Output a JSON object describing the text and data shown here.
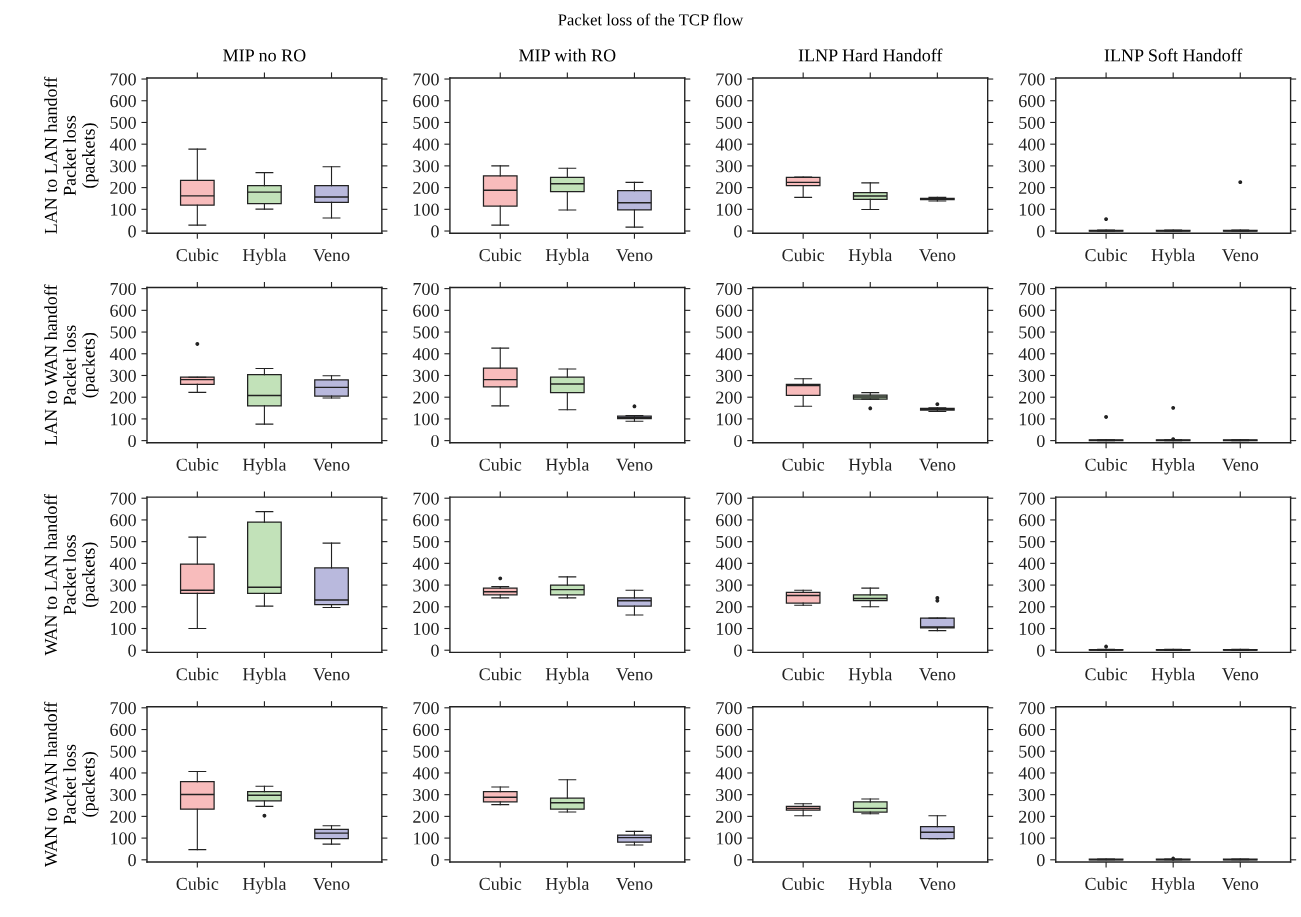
{
  "chart_data": [
    {
      "type": "box",
      "title": "MIP no RO",
      "ylabel": "LAN to LAN handoff\nPacket loss\n(packets)",
      "annotations": [
        "Packet loss of the TCP flow"
      ],
      "categories": [
        "Cubic",
        "Hybla",
        "Veno"
      ],
      "colors": [
        "#f8bcbc",
        "#c2e2b9",
        "#b9b9dd"
      ],
      "ylim": [
        -10,
        705
      ],
      "yticks": [
        0,
        100,
        200,
        300,
        400,
        500,
        600,
        700
      ],
      "grid": false,
      "boxes": [
        {
          "low": 27,
          "q1": 119,
          "median": 162,
          "q3": 233,
          "high": 377
        },
        {
          "low": 101,
          "q1": 126,
          "median": 179,
          "q3": 209,
          "high": 269
        },
        {
          "low": 60,
          "q1": 132,
          "median": 157,
          "q3": 209,
          "high": 296
        }
      ]
    },
    {
      "type": "box",
      "title": "MIP with RO",
      "categories": [
        "Cubic",
        "Hybla",
        "Veno"
      ],
      "colors": [
        "#f8bcbc",
        "#c2e2b9",
        "#b9b9dd"
      ],
      "ylim": [
        -10,
        705
      ],
      "yticks": [
        0,
        100,
        200,
        300,
        400,
        500,
        600,
        700
      ],
      "grid": false,
      "boxes": [
        {
          "low": 27,
          "q1": 115,
          "median": 188,
          "q3": 254,
          "high": 300
        },
        {
          "low": 97,
          "q1": 182,
          "median": 218,
          "q3": 247,
          "high": 289
        },
        {
          "low": 18,
          "q1": 97,
          "median": 130,
          "q3": 186,
          "high": 224
        }
      ]
    },
    {
      "type": "box",
      "title": "ILNP Hard Handoff",
      "categories": [
        "Cubic",
        "Hybla",
        "Veno"
      ],
      "colors": [
        "#f8bcbc",
        "#c2e2b9",
        "#b9b9dd"
      ],
      "ylim": [
        -10,
        705
      ],
      "yticks": [
        0,
        100,
        200,
        300,
        400,
        500,
        600,
        700
      ],
      "grid": false,
      "boxes": [
        {
          "low": 155,
          "q1": 209,
          "median": 224,
          "q3": 247,
          "high": 249
        },
        {
          "low": 99,
          "q1": 146,
          "median": 161,
          "q3": 177,
          "high": 222
        },
        {
          "low": 138,
          "q1": 145,
          "median": 148,
          "q3": 150,
          "high": 155
        }
      ]
    },
    {
      "type": "box",
      "title": "ILNP Soft Handoff",
      "categories": [
        "Cubic",
        "Hybla",
        "Veno"
      ],
      "colors": [
        "#f8bcbc",
        "#c2e2b9",
        "#b9b9dd"
      ],
      "ylim": [
        -10,
        705
      ],
      "yticks": [
        0,
        100,
        200,
        300,
        400,
        500,
        600,
        700
      ],
      "grid": false,
      "boxes": [
        {
          "low": 0,
          "q1": 0,
          "median": 1,
          "q3": 3,
          "high": 4,
          "outliers": [
            55
          ]
        },
        {
          "low": 0,
          "q1": 0,
          "median": 1,
          "q3": 3,
          "high": 4
        },
        {
          "low": 0,
          "q1": 0,
          "median": 1,
          "q3": 3,
          "high": 4,
          "outliers": [
            225
          ]
        }
      ]
    },
    {
      "type": "box",
      "ylabel": "LAN to WAN handoff\nPacket loss\n(packets)",
      "categories": [
        "Cubic",
        "Hybla",
        "Veno"
      ],
      "colors": [
        "#f8bcbc",
        "#c2e2b9",
        "#b9b9dd"
      ],
      "ylim": [
        -10,
        705
      ],
      "yticks": [
        0,
        100,
        200,
        300,
        400,
        500,
        600,
        700
      ],
      "grid": false,
      "boxes": [
        {
          "low": 222,
          "q1": 259,
          "median": 281,
          "q3": 292,
          "high": 292,
          "outliers": [
            445
          ]
        },
        {
          "low": 76,
          "q1": 160,
          "median": 208,
          "q3": 304,
          "high": 332
        },
        {
          "low": 196,
          "q1": 205,
          "median": 245,
          "q3": 280,
          "high": 299
        }
      ]
    },
    {
      "type": "box",
      "categories": [
        "Cubic",
        "Hybla",
        "Veno"
      ],
      "colors": [
        "#f8bcbc",
        "#c2e2b9",
        "#b9b9dd"
      ],
      "ylim": [
        -10,
        705
      ],
      "yticks": [
        0,
        100,
        200,
        300,
        400,
        500,
        600,
        700
      ],
      "grid": false,
      "boxes": [
        {
          "low": 160,
          "q1": 248,
          "median": 281,
          "q3": 334,
          "high": 426
        },
        {
          "low": 142,
          "q1": 221,
          "median": 261,
          "q3": 292,
          "high": 330
        },
        {
          "low": 89,
          "q1": 101,
          "median": 106,
          "q3": 113,
          "high": 115,
          "outliers": [
            158
          ]
        }
      ]
    },
    {
      "type": "box",
      "categories": [
        "Cubic",
        "Hybla",
        "Veno"
      ],
      "colors": [
        "#f8bcbc",
        "#c2e2b9",
        "#b9b9dd"
      ],
      "ylim": [
        -10,
        705
      ],
      "yticks": [
        0,
        100,
        200,
        300,
        400,
        500,
        600,
        700
      ],
      "grid": false,
      "boxes": [
        {
          "low": 158,
          "q1": 208,
          "median": 254,
          "q3": 259,
          "high": 285
        },
        {
          "low": 191,
          "q1": 191,
          "median": 201,
          "q3": 210,
          "high": 221,
          "outliers": [
            149
          ]
        },
        {
          "low": 134,
          "q1": 141,
          "median": 144,
          "q3": 149,
          "high": 151,
          "outliers": [
            168
          ]
        }
      ]
    },
    {
      "type": "box",
      "categories": [
        "Cubic",
        "Hybla",
        "Veno"
      ],
      "colors": [
        "#f8bcbc",
        "#c2e2b9",
        "#b9b9dd"
      ],
      "ylim": [
        -10,
        705
      ],
      "yticks": [
        0,
        100,
        200,
        300,
        400,
        500,
        600,
        700
      ],
      "grid": false,
      "boxes": [
        {
          "low": 0,
          "q1": 0,
          "median": 1,
          "q3": 3,
          "high": 4,
          "outliers": [
            109
          ]
        },
        {
          "low": 0,
          "q1": 0,
          "median": 1,
          "q3": 3,
          "high": 4,
          "outliers": [
            151,
            7
          ]
        },
        {
          "low": 0,
          "q1": 0,
          "median": 1,
          "q3": 3,
          "high": 4
        }
      ]
    },
    {
      "type": "box",
      "ylabel": "WAN to LAN handoff\nPacket loss\n(packets)",
      "categories": [
        "Cubic",
        "Hybla",
        "Veno"
      ],
      "colors": [
        "#f8bcbc",
        "#c2e2b9",
        "#b9b9dd"
      ],
      "ylim": [
        -10,
        705
      ],
      "yticks": [
        0,
        100,
        200,
        300,
        400,
        500,
        600,
        700
      ],
      "grid": false,
      "boxes": [
        {
          "low": 100,
          "q1": 262,
          "median": 276,
          "q3": 397,
          "high": 521
        },
        {
          "low": 203,
          "q1": 262,
          "median": 290,
          "q3": 590,
          "high": 638
        },
        {
          "low": 197,
          "q1": 210,
          "median": 231,
          "q3": 379,
          "high": 493
        }
      ]
    },
    {
      "type": "box",
      "categories": [
        "Cubic",
        "Hybla",
        "Veno"
      ],
      "colors": [
        "#f8bcbc",
        "#c2e2b9",
        "#b9b9dd"
      ],
      "ylim": [
        -10,
        705
      ],
      "yticks": [
        0,
        100,
        200,
        300,
        400,
        500,
        600,
        700
      ],
      "grid": false,
      "boxes": [
        {
          "low": 241,
          "q1": 255,
          "median": 269,
          "q3": 286,
          "high": 293,
          "outliers": [
            331
          ]
        },
        {
          "low": 241,
          "q1": 255,
          "median": 279,
          "q3": 300,
          "high": 338
        },
        {
          "low": 162,
          "q1": 203,
          "median": 228,
          "q3": 241,
          "high": 276
        }
      ]
    },
    {
      "type": "box",
      "categories": [
        "Cubic",
        "Hybla",
        "Veno"
      ],
      "colors": [
        "#f8bcbc",
        "#c2e2b9",
        "#b9b9dd"
      ],
      "ylim": [
        -10,
        705
      ],
      "yticks": [
        0,
        100,
        200,
        300,
        400,
        500,
        600,
        700
      ],
      "grid": false,
      "boxes": [
        {
          "low": 207,
          "q1": 217,
          "median": 252,
          "q3": 266,
          "high": 276
        },
        {
          "low": 200,
          "q1": 228,
          "median": 238,
          "q3": 255,
          "high": 286
        },
        {
          "low": 90,
          "q1": 103,
          "median": 107,
          "q3": 148,
          "high": 148,
          "outliers": [
            241,
            228
          ]
        }
      ]
    },
    {
      "type": "box",
      "categories": [
        "Cubic",
        "Hybla",
        "Veno"
      ],
      "colors": [
        "#f8bcbc",
        "#c2e2b9",
        "#b9b9dd"
      ],
      "ylim": [
        -10,
        705
      ],
      "yticks": [
        0,
        100,
        200,
        300,
        400,
        500,
        600,
        700
      ],
      "grid": false,
      "boxes": [
        {
          "low": 0,
          "q1": 0,
          "median": 1,
          "q3": 3,
          "high": 4,
          "outliers": [
            17
          ]
        },
        {
          "low": 0,
          "q1": 0,
          "median": 1,
          "q3": 3,
          "high": 4
        },
        {
          "low": 0,
          "q1": 0,
          "median": 1,
          "q3": 3,
          "high": 4
        }
      ]
    },
    {
      "type": "box",
      "ylabel": "WAN to WAN handoff\nPacket loss\n(packets)",
      "categories": [
        "Cubic",
        "Hybla",
        "Veno"
      ],
      "colors": [
        "#f8bcbc",
        "#c2e2b9",
        "#b9b9dd"
      ],
      "ylim": [
        -10,
        705
      ],
      "yticks": [
        0,
        100,
        200,
        300,
        400,
        500,
        600,
        700
      ],
      "grid": false,
      "boxes": [
        {
          "low": 47,
          "q1": 233,
          "median": 301,
          "q3": 360,
          "high": 407
        },
        {
          "low": 246,
          "q1": 271,
          "median": 297,
          "q3": 314,
          "high": 339,
          "outliers": [
            203
          ]
        },
        {
          "low": 72,
          "q1": 97,
          "median": 123,
          "q3": 140,
          "high": 157
        }
      ]
    },
    {
      "type": "box",
      "categories": [
        "Cubic",
        "Hybla",
        "Veno"
      ],
      "colors": [
        "#f8bcbc",
        "#c2e2b9",
        "#b9b9dd"
      ],
      "ylim": [
        -10,
        705
      ],
      "yticks": [
        0,
        100,
        200,
        300,
        400,
        500,
        600,
        700
      ],
      "grid": false,
      "boxes": [
        {
          "low": 254,
          "q1": 267,
          "median": 288,
          "q3": 314,
          "high": 335
        },
        {
          "low": 220,
          "q1": 233,
          "median": 263,
          "q3": 284,
          "high": 369
        },
        {
          "low": 68,
          "q1": 81,
          "median": 102,
          "q3": 114,
          "high": 131
        }
      ]
    },
    {
      "type": "box",
      "categories": [
        "Cubic",
        "Hybla",
        "Veno"
      ],
      "colors": [
        "#f8bcbc",
        "#c2e2b9",
        "#b9b9dd"
      ],
      "ylim": [
        -10,
        705
      ],
      "yticks": [
        0,
        100,
        200,
        300,
        400,
        500,
        600,
        700
      ],
      "grid": false,
      "boxes": [
        {
          "low": 203,
          "q1": 229,
          "median": 237,
          "q3": 246,
          "high": 258
        },
        {
          "low": 212,
          "q1": 220,
          "median": 237,
          "q3": 267,
          "high": 280
        },
        {
          "low": 97,
          "q1": 97,
          "median": 127,
          "q3": 153,
          "high": 203
        }
      ]
    },
    {
      "type": "box",
      "categories": [
        "Cubic",
        "Hybla",
        "Veno"
      ],
      "colors": [
        "#f8bcbc",
        "#c2e2b9",
        "#b9b9dd"
      ],
      "ylim": [
        -10,
        705
      ],
      "yticks": [
        0,
        100,
        200,
        300,
        400,
        500,
        600,
        700
      ],
      "grid": false,
      "boxes": [
        {
          "low": 0,
          "q1": 0,
          "median": 1,
          "q3": 3,
          "high": 4
        },
        {
          "low": 0,
          "q1": 0,
          "median": 1,
          "q3": 3,
          "high": 4,
          "outliers": [
            6
          ]
        },
        {
          "low": 0,
          "q1": 0,
          "median": 1,
          "q3": 3,
          "high": 4
        }
      ]
    }
  ]
}
